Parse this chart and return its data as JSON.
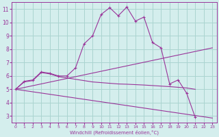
{
  "bg_color": "#d4eeed",
  "grid_color": "#aad4d0",
  "line_color": "#993399",
  "xlabel": "Windchill (Refroidissement éolien,°C)",
  "xlim": [
    -0.5,
    23.5
  ],
  "ylim": [
    2.5,
    11.5
  ],
  "xticks": [
    0,
    1,
    2,
    3,
    4,
    5,
    6,
    7,
    8,
    9,
    10,
    11,
    12,
    13,
    14,
    15,
    16,
    17,
    18,
    19,
    20,
    21,
    22,
    23
  ],
  "yticks": [
    3,
    4,
    5,
    6,
    7,
    8,
    9,
    10,
    11
  ],
  "main_x": [
    0,
    1,
    2,
    3,
    4,
    5,
    6,
    7,
    8,
    9,
    10,
    11,
    12,
    13,
    14,
    15,
    16,
    17,
    18,
    19,
    20,
    21
  ],
  "main_y": [
    5.0,
    5.6,
    5.7,
    6.3,
    6.2,
    6.0,
    6.0,
    6.6,
    8.4,
    9.0,
    10.6,
    11.1,
    10.5,
    11.15,
    10.1,
    10.4,
    8.5,
    8.1,
    5.4,
    5.7,
    4.7,
    2.9
  ],
  "upper_line_x": [
    0,
    23
  ],
  "upper_line_y": [
    5.0,
    8.1
  ],
  "lower_line_x": [
    0,
    23
  ],
  "lower_line_y": [
    5.0,
    2.85
  ],
  "smooth_x": [
    0,
    1,
    2,
    3,
    4,
    5,
    6,
    7,
    8,
    9,
    10,
    11,
    12,
    13,
    14,
    15,
    16,
    17,
    18,
    19,
    20,
    21
  ],
  "smooth_y": [
    5.0,
    5.55,
    5.65,
    6.25,
    6.15,
    5.95,
    5.85,
    5.75,
    5.65,
    5.55,
    5.5,
    5.45,
    5.4,
    5.38,
    5.35,
    5.32,
    5.28,
    5.24,
    5.2,
    5.15,
    5.1,
    5.0
  ]
}
